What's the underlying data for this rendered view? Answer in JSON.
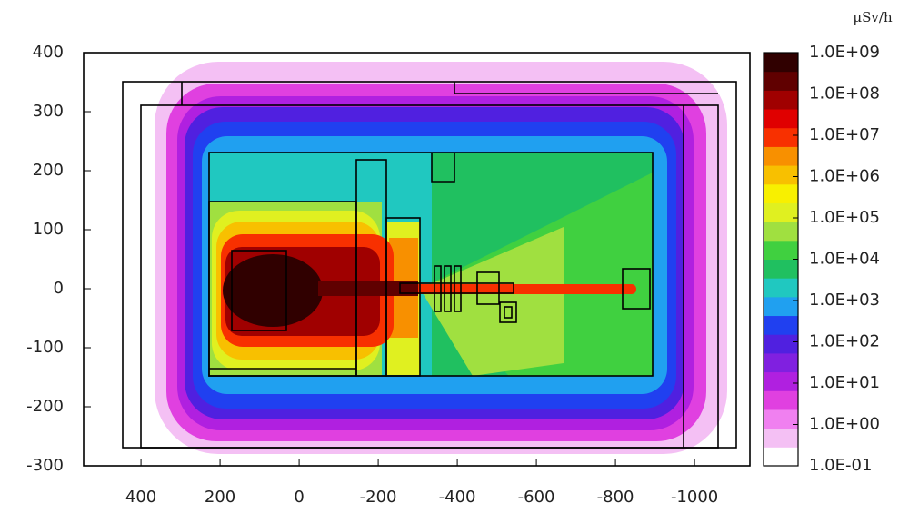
{
  "chart_data": {
    "type": "heatmap",
    "xlim": [
      545,
      -1140
    ],
    "ylim": [
      -300,
      400
    ],
    "xticks": [
      400,
      200,
      0,
      -200,
      -400,
      -600,
      -800,
      -1000
    ],
    "yticks": [
      -300,
      -200,
      -100,
      0,
      100,
      200,
      300,
      400
    ],
    "colorbar_label": "μSv/h",
    "clim": [
      0.1,
      1000000000
    ],
    "color_log": true,
    "cticks": [
      {
        "value": 0.1,
        "label": "1.0E-01"
      },
      {
        "value": 1,
        "label": "1.0E+00"
      },
      {
        "value": 10,
        "label": "1.0E+01"
      },
      {
        "value": 100,
        "label": "1.0E+02"
      },
      {
        "value": 1000,
        "label": "1.0E+03"
      },
      {
        "value": 10000,
        "label": "1.0E+04"
      },
      {
        "value": 100000,
        "label": "1.0E+05"
      },
      {
        "value": 1000000,
        "label": "1.0E+06"
      },
      {
        "value": 10000000,
        "label": "1.0E+07"
      },
      {
        "value": 100000000,
        "label": "1.0E+08"
      },
      {
        "value": 1000000000,
        "label": "1.0E+09"
      }
    ],
    "colormap": [
      "#ffffff",
      "#f4c0f4",
      "#f080f0",
      "#e040e0",
      "#b020e0",
      "#8020e0",
      "#5020e0",
      "#2040f0",
      "#20a0f0",
      "#20c8c0",
      "#20c060",
      "#40d040",
      "#a0e040",
      "#e0f020",
      "#f8f000",
      "#f8c000",
      "#f89000",
      "#f83000",
      "#e00000",
      "#a00000",
      "#600000",
      "#300000"
    ]
  }
}
